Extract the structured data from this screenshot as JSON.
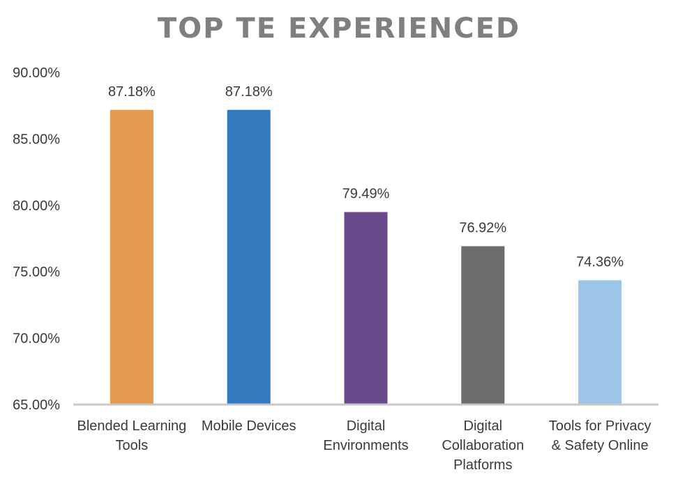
{
  "chart_data": {
    "type": "bar",
    "title": "TOP TE EXPERIENCED",
    "xlabel": "",
    "ylabel": "",
    "categories": [
      "Blended Learning Tools",
      "Mobile Devices",
      "Digital Environments",
      "Digital Collaboration Platforms",
      "Tools for Privacy & Safety Online"
    ],
    "category_label_lines": [
      [
        "Blended Learning",
        "Tools"
      ],
      [
        "Mobile Devices"
      ],
      [
        "Digital",
        "Environments"
      ],
      [
        "Digital",
        "Collaboration",
        "Platforms"
      ],
      [
        "Tools for Privacy",
        "& Safety Online"
      ]
    ],
    "values": [
      87.18,
      87.18,
      79.49,
      76.92,
      74.36
    ],
    "data_labels": [
      "87.18%",
      "87.18%",
      "79.49%",
      "76.92%",
      "74.36%"
    ],
    "bar_colors": [
      "#E39B50",
      "#3279BE",
      "#694A8A",
      "#6B6C6E",
      "#9CC5E8"
    ],
    "ylim": [
      65,
      90
    ],
    "yticks": [
      65,
      70,
      75,
      80,
      85,
      90
    ],
    "ytick_labels": [
      "65.00%",
      "70.00%",
      "75.00%",
      "80.00%",
      "85.00%",
      "90.00%"
    ],
    "grid": false,
    "legend": "none"
  }
}
